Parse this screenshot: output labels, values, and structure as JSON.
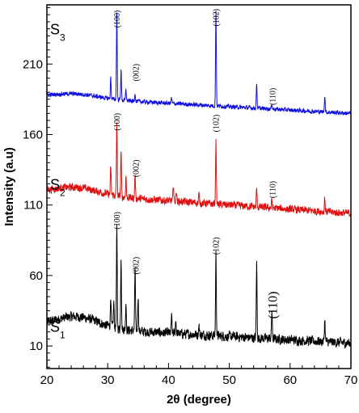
{
  "chart_data": {
    "type": "line",
    "x_axis": {
      "label_theta": "2θ",
      "label_rest": " (degree)",
      "range": [
        20,
        70
      ],
      "ticks": [
        20,
        30,
        40,
        50,
        60,
        70
      ]
    },
    "y_axis": {
      "label": "Intensity (a.u)",
      "range": [
        -6,
        252
      ],
      "ticks": [
        10,
        60,
        110,
        160,
        210
      ]
    },
    "series": [
      {
        "name": "S1",
        "label_main": "S",
        "label_sub": "1",
        "color": "#000000",
        "baseline": 24,
        "baseline_end": 12,
        "noise": 4.5,
        "hump": 8,
        "peaks": [
          {
            "x": 30.5,
            "h": 22
          },
          {
            "x": 31.0,
            "h": 18
          },
          {
            "x": 31.5,
            "h": 70
          },
          {
            "x": 32.2,
            "h": 52
          },
          {
            "x": 33.0,
            "h": 20
          },
          {
            "x": 34.5,
            "h": 45
          },
          {
            "x": 35.0,
            "h": 25
          },
          {
            "x": 40.5,
            "h": 12
          },
          {
            "x": 41.2,
            "h": 10
          },
          {
            "x": 45.0,
            "h": 7
          },
          {
            "x": 47.8,
            "h": 58
          },
          {
            "x": 54.5,
            "h": 53
          },
          {
            "x": 57.0,
            "h": 20
          },
          {
            "x": 65.7,
            "h": 16
          }
        ]
      },
      {
        "name": "S2",
        "label_main": "S",
        "label_sub": "2",
        "color": "#e01010",
        "baseline": 119,
        "baseline_end": 104,
        "noise": 3.5,
        "hump": 5,
        "peaks": [
          {
            "x": 30.5,
            "h": 20
          },
          {
            "x": 31.5,
            "h": 53
          },
          {
            "x": 32.2,
            "h": 32
          },
          {
            "x": 33.0,
            "h": 15
          },
          {
            "x": 34.5,
            "h": 17
          },
          {
            "x": 40.8,
            "h": 12
          },
          {
            "x": 41.3,
            "h": 8
          },
          {
            "x": 45.0,
            "h": 6
          },
          {
            "x": 47.8,
            "h": 45
          },
          {
            "x": 54.5,
            "h": 13
          },
          {
            "x": 57.0,
            "h": 6
          },
          {
            "x": 65.7,
            "h": 10
          }
        ]
      },
      {
        "name": "S3",
        "label_main": "S",
        "label_sub": "3",
        "color": "#1010e0",
        "baseline": 187,
        "baseline_end": 175,
        "noise": 2,
        "hump": 3,
        "peaks": [
          {
            "x": 30.5,
            "h": 15
          },
          {
            "x": 31.5,
            "h": 62
          },
          {
            "x": 32.2,
            "h": 22
          },
          {
            "x": 33.0,
            "h": 8
          },
          {
            "x": 34.5,
            "h": 6
          },
          {
            "x": 40.5,
            "h": 4
          },
          {
            "x": 47.8,
            "h": 68
          },
          {
            "x": 54.5,
            "h": 18
          },
          {
            "x": 57.0,
            "h": 4
          },
          {
            "x": 65.7,
            "h": 12
          }
        ]
      }
    ],
    "annotations": [
      {
        "text": "(100)",
        "x": 31.5,
        "y": 242,
        "size": "small"
      },
      {
        "text": "(002)",
        "x": 34.6,
        "y": 204,
        "size": "small"
      },
      {
        "text": "(102)",
        "x": 47.8,
        "y": 243,
        "size": "small"
      },
      {
        "text": "(110)",
        "x": 57.1,
        "y": 187,
        "size": "small"
      },
      {
        "text": "(100)",
        "x": 31.5,
        "y": 169,
        "size": "small"
      },
      {
        "text": "(002)",
        "x": 34.6,
        "y": 136,
        "size": "small"
      },
      {
        "text": "(102)",
        "x": 47.8,
        "y": 168,
        "size": "small"
      },
      {
        "text": "(110)",
        "x": 57.1,
        "y": 121,
        "size": "small"
      },
      {
        "text": "(100)",
        "x": 31.5,
        "y": 99,
        "size": "small"
      },
      {
        "text": "(002)",
        "x": 34.6,
        "y": 67,
        "size": "small"
      },
      {
        "text": "(102)",
        "x": 47.8,
        "y": 81,
        "size": "small"
      },
      {
        "text": "(110)",
        "x": 57.1,
        "y": 39,
        "size": "large"
      }
    ]
  }
}
